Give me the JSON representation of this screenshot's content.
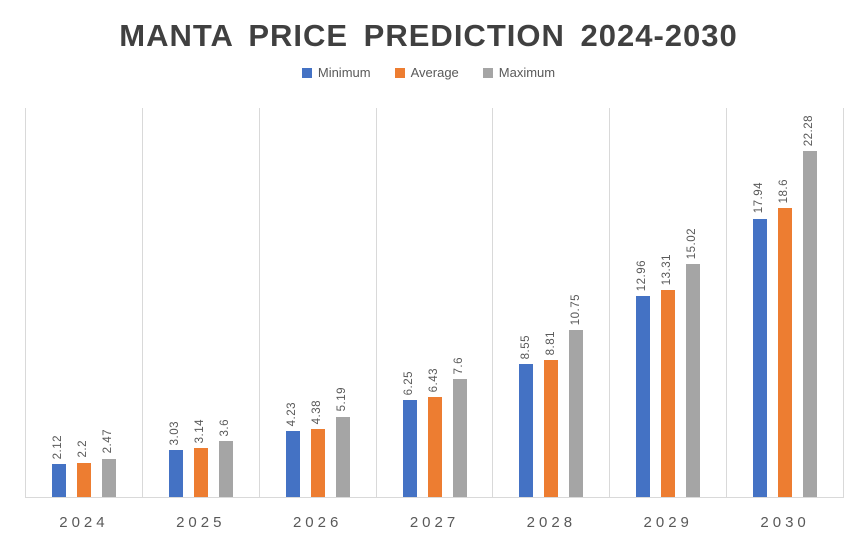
{
  "chart_data": {
    "type": "bar",
    "title": "MANTA PRICE PREDICTION 2024-2030",
    "categories": [
      "2024",
      "2025",
      "2026",
      "2027",
      "2028",
      "2029",
      "2030"
    ],
    "series": [
      {
        "name": "Minimum",
        "color": "#4472C4",
        "values": [
          2.12,
          3.03,
          4.23,
          6.25,
          8.55,
          12.96,
          17.94
        ]
      },
      {
        "name": "Average",
        "color": "#ED7D31",
        "values": [
          2.2,
          3.14,
          4.38,
          6.43,
          8.81,
          13.31,
          18.6
        ]
      },
      {
        "name": "Maximum",
        "color": "#A5A5A5",
        "values": [
          2.47,
          3.6,
          5.19,
          7.6,
          10.75,
          15.02,
          22.28
        ]
      }
    ],
    "xlabel": "",
    "ylabel": "",
    "ylim": [
      0,
      25
    ],
    "grid": "vertical category separators only",
    "legend_position": "top-center",
    "value_labels": "rotated 90deg above each bar",
    "colors": {
      "title_text": "#404040",
      "label_text": "#595959",
      "gridline": "#D9D9D9",
      "background": "#FFFFFF"
    }
  }
}
